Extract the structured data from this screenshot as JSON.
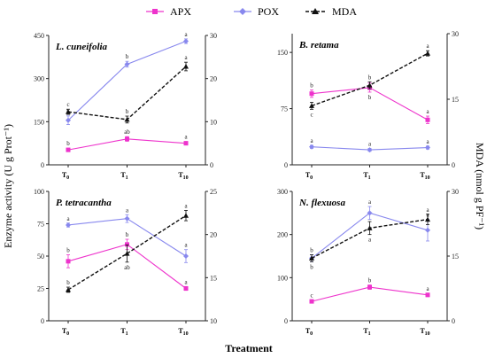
{
  "figure": {
    "x_axis_label": "Treatment",
    "left_axis_label": "Enzyme activity (U g Prot⁻¹)",
    "right_axis_label": "MDA (nmol g PF⁻¹)",
    "legend": [
      {
        "name": "APX",
        "color": "#ee33cc",
        "marker": "square",
        "dash": false
      },
      {
        "name": "POX",
        "color": "#8888ee",
        "marker": "diamond",
        "dash": false
      },
      {
        "name": "MDA",
        "color": "#111111",
        "marker": "triangle",
        "dash": true
      }
    ]
  },
  "chart_data": [
    {
      "type": "line",
      "title": "L. cuneifolia",
      "categories": [
        {
          "base": "T",
          "sub": "0"
        },
        {
          "base": "T",
          "sub": "1"
        },
        {
          "base": "T",
          "sub": "10"
        }
      ],
      "left_axis": {
        "min": 0,
        "max": 450,
        "ticks": [
          0,
          150,
          300,
          450
        ]
      },
      "right_axis": {
        "min": 0,
        "max": 30,
        "ticks": [
          0,
          10,
          20,
          30
        ]
      },
      "series": [
        {
          "name": "APX",
          "axis": "left",
          "values": [
            52,
            90,
            75
          ],
          "errors": [
            6,
            8,
            6
          ],
          "letters": [
            "b",
            "ab",
            "a"
          ],
          "letter_pos": [
            "above",
            "above",
            "above"
          ]
        },
        {
          "name": "POX",
          "axis": "left",
          "values": [
            155,
            350,
            430
          ],
          "errors": [
            15,
            10,
            8
          ],
          "letters": [
            "b",
            "b",
            "a"
          ],
          "letter_pos": [
            "above",
            "above",
            "above"
          ]
        },
        {
          "name": "MDA",
          "axis": "right",
          "values": [
            12.3,
            10.5,
            22.8
          ],
          "errors": [
            0.6,
            0.8,
            1.0
          ],
          "letters": [
            "c",
            "b",
            "a"
          ],
          "letter_pos": [
            "above",
            "above",
            "above"
          ]
        }
      ]
    },
    {
      "type": "line",
      "title": "B. retama",
      "categories": [
        {
          "base": "T",
          "sub": "0"
        },
        {
          "base": "T",
          "sub": "1"
        },
        {
          "base": "T",
          "sub": "10"
        }
      ],
      "left_axis": {
        "min": 0,
        "max": 175,
        "ticks": [
          0,
          75,
          150
        ]
      },
      "right_axis": {
        "min": 0,
        "max": 30,
        "ticks": [
          0,
          15,
          30
        ]
      },
      "series": [
        {
          "name": "APX",
          "axis": "left",
          "values": [
            95,
            103,
            60
          ],
          "errors": [
            5,
            6,
            5
          ],
          "letters": [
            "b",
            "b",
            "a"
          ],
          "letter_pos": [
            "above",
            "below",
            "above"
          ]
        },
        {
          "name": "POX",
          "axis": "left",
          "values": [
            24,
            20,
            23
          ],
          "errors": [
            2,
            2,
            2
          ],
          "letters": [
            "a",
            "a",
            "a"
          ],
          "letter_pos": [
            "above",
            "above",
            "above"
          ]
        },
        {
          "name": "MDA",
          "axis": "right",
          "values": [
            13.5,
            18.2,
            25.5
          ],
          "errors": [
            0.8,
            0.8,
            0.6
          ],
          "letters": [
            "c",
            "b",
            "a"
          ],
          "letter_pos": [
            "below",
            "above",
            "above"
          ]
        }
      ]
    },
    {
      "type": "line",
      "title": "P. tetracantha",
      "categories": [
        {
          "base": "T",
          "sub": "0"
        },
        {
          "base": "T",
          "sub": "1"
        },
        {
          "base": "T",
          "sub": "10"
        }
      ],
      "left_axis": {
        "min": 0,
        "max": 100,
        "ticks": [
          0,
          25,
          50,
          75,
          100
        ]
      },
      "right_axis": {
        "min": 10,
        "max": 25,
        "ticks": [
          10,
          15,
          20,
          25
        ]
      },
      "series": [
        {
          "name": "APX",
          "axis": "left",
          "values": [
            46,
            59,
            25
          ],
          "errors": [
            5,
            4,
            1.5
          ],
          "letters": [
            "b",
            "b",
            "a"
          ],
          "letter_pos": [
            "above",
            "above",
            "above"
          ]
        },
        {
          "name": "POX",
          "axis": "left",
          "values": [
            74,
            79,
            50
          ],
          "errors": [
            1.5,
            3,
            5
          ],
          "letters": [
            "a",
            "a",
            "a"
          ],
          "letter_pos": [
            "above",
            "above",
            "above"
          ]
        },
        {
          "name": "MDA",
          "axis": "right",
          "values": [
            13.6,
            17.8,
            22.2
          ],
          "errors": [
            0.3,
            1.0,
            0.6
          ],
          "letters": [
            "b",
            "ab",
            "a"
          ],
          "letter_pos": [
            "above",
            "below",
            "above"
          ]
        }
      ]
    },
    {
      "type": "line",
      "title": "N. flexuosa",
      "categories": [
        {
          "base": "T",
          "sub": "0"
        },
        {
          "base": "T",
          "sub": "1"
        },
        {
          "base": "T",
          "sub": "10"
        }
      ],
      "left_axis": {
        "min": 0,
        "max": 300,
        "ticks": [
          0,
          100,
          200,
          300
        ]
      },
      "right_axis": {
        "min": 0,
        "max": 30,
        "ticks": [
          0,
          15,
          30
        ]
      },
      "series": [
        {
          "name": "APX",
          "axis": "left",
          "values": [
            45,
            78,
            60
          ],
          "errors": [
            3,
            5,
            4
          ],
          "letters": [
            "c",
            "b",
            "a"
          ],
          "letter_pos": [
            "above",
            "above",
            "above"
          ]
        },
        {
          "name": "POX",
          "axis": "left",
          "values": [
            145,
            250,
            210
          ],
          "errors": [
            8,
            15,
            25
          ],
          "letters": [
            "b",
            "a",
            "a"
          ],
          "letter_pos": [
            "above",
            "above",
            "above"
          ]
        },
        {
          "name": "MDA",
          "axis": "right",
          "values": [
            14.5,
            21.5,
            23.5
          ],
          "errors": [
            0.8,
            1.5,
            1.2
          ],
          "letters": [
            "b",
            "a",
            "a"
          ],
          "letter_pos": [
            "below",
            "below",
            "above"
          ]
        }
      ]
    }
  ]
}
